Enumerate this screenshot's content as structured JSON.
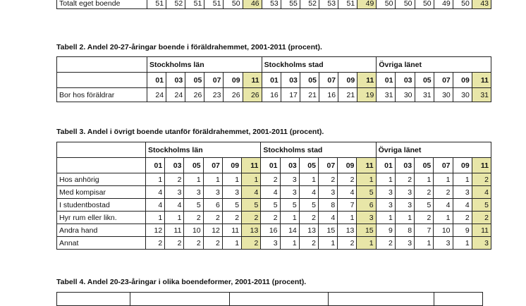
{
  "table1": {
    "rows": [
      {
        "label": "Totalt eget boende",
        "values": [
          51,
          52,
          51,
          51,
          50,
          46,
          53,
          55,
          52,
          53,
          51,
          49,
          50,
          50,
          50,
          49,
          50,
          43
        ]
      }
    ]
  },
  "table2": {
    "title": "Tabell 2. Andel 20-27-åringar boende i föräldrahemmet, 2001-2011 (procent).",
    "groups": [
      "Stockholms län",
      "Stockholms stad",
      "Övriga länet"
    ],
    "years": [
      "01",
      "03",
      "05",
      "07",
      "09",
      "11"
    ],
    "rows": [
      {
        "label": "Bor hos föräldrar",
        "values": [
          24,
          24,
          26,
          23,
          26,
          26,
          16,
          17,
          21,
          16,
          21,
          19,
          31,
          30,
          31,
          30,
          30,
          31
        ]
      }
    ]
  },
  "table3": {
    "title": "Tabell 3. Andel i övrigt boende utanför föräldrahemmet, 2001-2011 (procent).",
    "groups": [
      "Stockholms län",
      "Stockholms stad",
      "Övriga länet"
    ],
    "years": [
      "01",
      "03",
      "05",
      "07",
      "09",
      "11"
    ],
    "rows": [
      {
        "label": "Hos anhörig",
        "values": [
          1,
          2,
          1,
          1,
          1,
          1,
          2,
          3,
          1,
          2,
          2,
          1,
          1,
          2,
          1,
          1,
          1,
          2
        ]
      },
      {
        "label": "Med kompisar",
        "values": [
          4,
          3,
          3,
          3,
          3,
          4,
          4,
          3,
          4,
          3,
          4,
          5,
          3,
          3,
          2,
          2,
          3,
          4
        ]
      },
      {
        "label": "I studentbostad",
        "values": [
          4,
          4,
          5,
          6,
          5,
          5,
          5,
          5,
          5,
          8,
          7,
          6,
          3,
          3,
          5,
          4,
          4,
          5
        ]
      },
      {
        "label": "Hyr rum eller likn.",
        "values": [
          1,
          1,
          2,
          2,
          2,
          2,
          2,
          1,
          2,
          4,
          1,
          3,
          1,
          1,
          2,
          1,
          2,
          2
        ]
      },
      {
        "label": "Andra hand",
        "values": [
          12,
          11,
          10,
          12,
          11,
          13,
          16,
          14,
          13,
          15,
          13,
          15,
          9,
          8,
          7,
          10,
          9,
          11
        ]
      },
      {
        "label": "Annat",
        "values": [
          2,
          2,
          2,
          2,
          1,
          2,
          3,
          1,
          2,
          1,
          2,
          1,
          2,
          3,
          1,
          3,
          1,
          3
        ]
      }
    ]
  },
  "table4": {
    "title": "Tabell 4. Andel 20-23-åringar i olika boendeformer, 2001-2011 (procent)."
  },
  "highlight_color": "#e8e6a8"
}
